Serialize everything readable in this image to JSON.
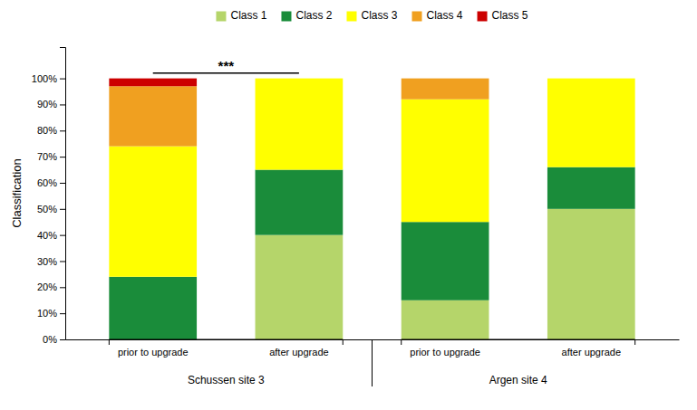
{
  "chart_data": {
    "type": "bar",
    "stacked": true,
    "categories": [
      "prior to upgrade",
      "after upgrade",
      "prior to upgrade",
      "after upgrade"
    ],
    "group_labels": [
      "Schussen site 3",
      "Argen site 4"
    ],
    "series": [
      {
        "name": "Class 1",
        "color": "#b5d56a",
        "values": [
          0,
          40,
          15,
          50
        ]
      },
      {
        "name": "Class 2",
        "color": "#1a8c3a",
        "values": [
          24,
          25,
          30,
          16
        ]
      },
      {
        "name": "Class 3",
        "color": "#ffff00",
        "values": [
          50,
          35,
          47,
          34
        ]
      },
      {
        "name": "Class 4",
        "color": "#f0a020",
        "values": [
          23,
          0,
          8,
          0
        ]
      },
      {
        "name": "Class 5",
        "color": "#cc0000",
        "values": [
          3,
          0,
          0,
          0
        ]
      }
    ],
    "ylabel": "Classification",
    "ylim": [
      0,
      112
    ],
    "yticks": [
      {
        "value": 0,
        "label": "0%"
      },
      {
        "value": 10,
        "label": "10%"
      },
      {
        "value": 20,
        "label": "20%"
      },
      {
        "value": 30,
        "label": "30%"
      },
      {
        "value": 40,
        "label": "40%"
      },
      {
        "value": 50,
        "label": "50%"
      },
      {
        "value": 60,
        "label": "60%"
      },
      {
        "value": 70,
        "label": "70%"
      },
      {
        "value": 80,
        "label": "80%"
      },
      {
        "value": 90,
        "label": "90%"
      },
      {
        "value": 100,
        "label": "100%"
      }
    ],
    "annotations": [
      {
        "text": "***",
        "y": 102,
        "group": 0
      }
    ],
    "legend": "top",
    "grid": false
  }
}
